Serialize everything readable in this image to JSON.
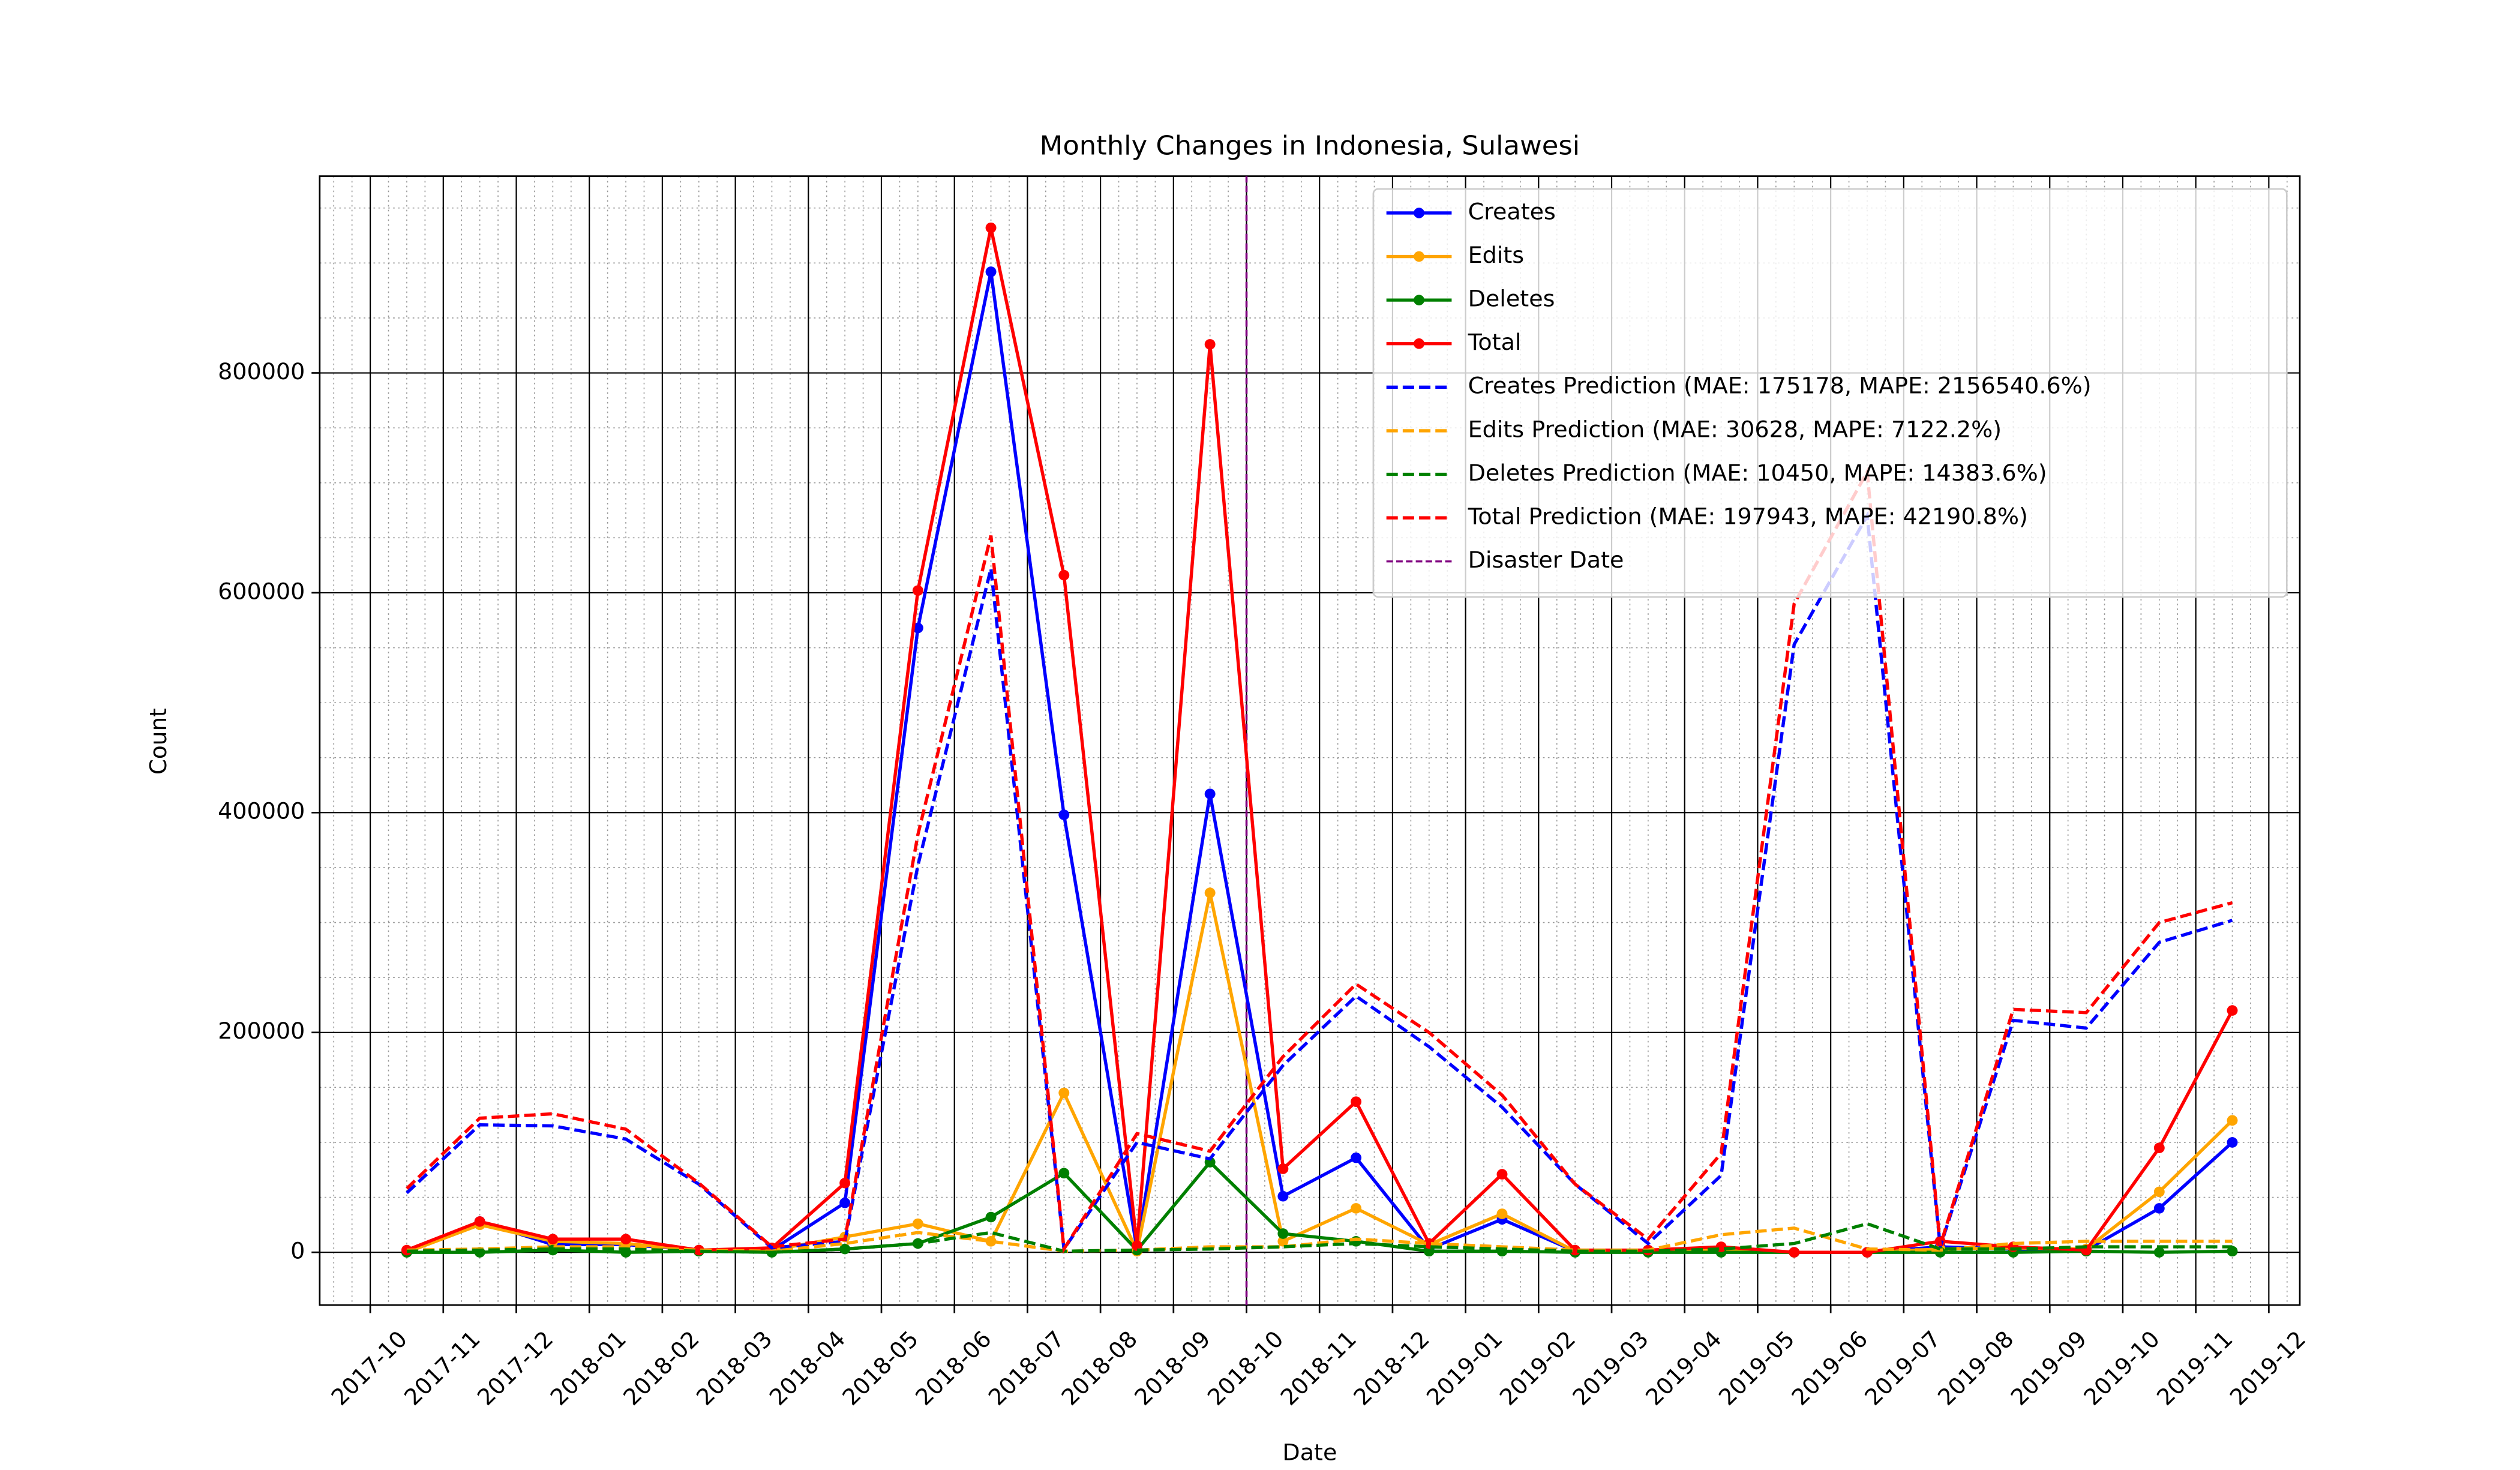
{
  "chart_data": {
    "type": "line",
    "title": "Monthly Changes in Indonesia, Sulawesi",
    "xlabel": "Date",
    "ylabel": "Count",
    "x": [
      "2017-10",
      "2017-11",
      "2017-12",
      "2018-01",
      "2018-02",
      "2018-03",
      "2018-04",
      "2018-05",
      "2018-06",
      "2018-07",
      "2018-08",
      "2018-09",
      "2018-10",
      "2018-11",
      "2018-12",
      "2019-01",
      "2019-02",
      "2019-03",
      "2019-04",
      "2019-05",
      "2019-06",
      "2019-07",
      "2019-08",
      "2019-09",
      "2019-10",
      "2019-11"
    ],
    "series": [
      {
        "name": "Creates",
        "color": "#0000ff",
        "linestyle": "solid",
        "marker": "o",
        "values": [
          0,
          28000,
          7000,
          7000,
          2000,
          2000,
          45000,
          568000,
          892000,
          398000,
          3000,
          417000,
          51000,
          86000,
          3000,
          30000,
          1000,
          2000,
          3000,
          0,
          0,
          5000,
          3000,
          2000,
          40000,
          100000
        ]
      },
      {
        "name": "Edits",
        "color": "#ffa500",
        "linestyle": "solid",
        "marker": "o",
        "values": [
          0,
          25000,
          10000,
          8000,
          2000,
          2000,
          14000,
          26000,
          10000,
          145000,
          1000,
          327000,
          10000,
          40000,
          7000,
          35000,
          1000,
          1000,
          3000,
          0,
          0,
          3000,
          4000,
          3000,
          55000,
          120000
        ]
      },
      {
        "name": "Deletes",
        "color": "#008000",
        "linestyle": "solid",
        "marker": "o",
        "values": [
          0,
          0,
          2000,
          0,
          1000,
          0,
          3000,
          8000,
          32000,
          72000,
          2000,
          82000,
          17000,
          10000,
          1000,
          1000,
          0,
          0,
          0,
          0,
          0,
          0,
          0,
          1000,
          0,
          1000
        ]
      },
      {
        "name": "Total",
        "color": "#ff0000",
        "linestyle": "solid",
        "marker": "o",
        "values": [
          2000,
          28000,
          12000,
          12000,
          2000,
          4000,
          63000,
          602000,
          932000,
          616000,
          6000,
          826000,
          76000,
          137000,
          8000,
          71000,
          2000,
          2000,
          5000,
          0,
          0,
          10000,
          5000,
          2000,
          95000,
          220000
        ]
      },
      {
        "name": "Creates Prediction (MAE: 175178, MAPE: 2156540.6%)",
        "color": "#0000ff",
        "linestyle": "dashed",
        "values": [
          54000,
          116000,
          115000,
          103000,
          62000,
          4000,
          10000,
          352000,
          622000,
          3000,
          100000,
          85000,
          170000,
          233000,
          187000,
          132000,
          62000,
          8000,
          70000,
          553000,
          670000,
          5000,
          211000,
          204000,
          282000,
          302000
        ]
      },
      {
        "name": "Edits Prediction (MAE: 30628, MAPE: 7122.2%)",
        "color": "#ffa500",
        "linestyle": "dashed",
        "values": [
          2000,
          3000,
          5000,
          5000,
          2000,
          1000,
          8000,
          18000,
          10000,
          1000,
          2000,
          5000,
          5000,
          12000,
          8000,
          5000,
          2000,
          2000,
          16000,
          22000,
          3000,
          2000,
          8000,
          10000,
          10000,
          10000
        ]
      },
      {
        "name": "Deletes Prediction (MAE: 10450, MAPE: 14383.6%)",
        "color": "#008000",
        "linestyle": "dashed",
        "values": [
          1000,
          2000,
          3000,
          3000,
          1000,
          0,
          3000,
          8000,
          18000,
          1000,
          2000,
          3000,
          5000,
          8000,
          5000,
          3000,
          1000,
          1000,
          3000,
          8000,
          26000,
          3000,
          3000,
          5000,
          5000,
          5000
        ]
      },
      {
        "name": "Total Prediction (MAE: 197943, MAPE: 42190.8%)",
        "color": "#ff0000",
        "linestyle": "dashed",
        "values": [
          58000,
          122000,
          126000,
          112000,
          63000,
          5000,
          12000,
          380000,
          652000,
          3000,
          108000,
          92000,
          178000,
          244000,
          200000,
          143000,
          62000,
          12000,
          90000,
          590000,
          710000,
          6000,
          221000,
          218000,
          300000,
          318000
        ]
      }
    ],
    "vlines": [
      {
        "name": "Disaster Date",
        "color": "#800080",
        "x": "2018-10"
      }
    ],
    "xlim": [
      "2017-10",
      "2019-12"
    ],
    "xticks": [
      "2017-10",
      "2017-11",
      "2017-12",
      "2018-01",
      "2018-02",
      "2018-03",
      "2018-04",
      "2018-05",
      "2018-06",
      "2018-07",
      "2018-08",
      "2018-09",
      "2018-10",
      "2018-11",
      "2018-12",
      "2019-01",
      "2019-02",
      "2019-03",
      "2019-04",
      "2019-05",
      "2019-06",
      "2019-07",
      "2019-08",
      "2019-09",
      "2019-10",
      "2019-11",
      "2019-12"
    ],
    "ylim": [
      -48000,
      979000
    ],
    "yticks": [
      0,
      200000,
      400000,
      600000,
      800000
    ],
    "grid": true,
    "minor_grid": true,
    "legend": "upper right"
  }
}
